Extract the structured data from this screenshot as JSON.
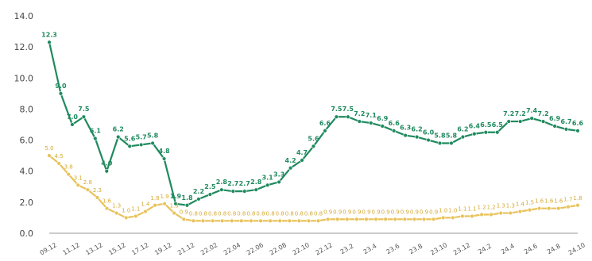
{
  "chart_data": {
    "type": "line",
    "ylim": [
      0,
      14
    ],
    "yticks": [
      "0.0",
      "2.0",
      "4.0",
      "6.0",
      "8.0",
      "10.0",
      "12.0",
      "14.0"
    ],
    "grid": false,
    "x_labels": [
      "09.12",
      "11.12",
      "13.12",
      "15.12",
      "17.12",
      "19.12",
      "21.12",
      "22.02",
      "22.04",
      "22.06",
      "22.08",
      "22.10",
      "22.12",
      "23.2",
      "23.4",
      "23.6",
      "23.8",
      "23.10",
      "23.12",
      "24.2",
      "24.4",
      "24.6",
      "24.8",
      "24.10"
    ],
    "series": [
      {
        "color": "#1f8a5e",
        "values": [
          12.3,
          9.0,
          7.0,
          7.5,
          6.1,
          4.0,
          6.2,
          5.6,
          5.7,
          5.8,
          4.8,
          1.9,
          1.8,
          2.2,
          2.5,
          2.8,
          2.7,
          2.7,
          2.8,
          3.1,
          3.3,
          4.2,
          4.7,
          5.6,
          6.6,
          7.5,
          7.5,
          7.2,
          7.1,
          6.9,
          6.6,
          6.3,
          6.2,
          6.0,
          5.8,
          5.8,
          6.2,
          6.4,
          6.5,
          6.5,
          7.2,
          7.2,
          7.4,
          7.2,
          6.9,
          6.7,
          6.6
        ],
        "labels": [
          "12.3",
          "9.0",
          "7.0",
          "7.5",
          "6.1",
          "4.0",
          "6.2",
          "5.6",
          "5.7",
          "5.8",
          "4.8",
          "1.9",
          "1.8",
          "2.2",
          "2.5",
          "2.8",
          "2.7",
          "2.7",
          "2.8",
          "3.1",
          "3.3",
          "4.2",
          "4.7",
          "5.6",
          "6.6",
          "7.5",
          "7.5",
          "7.2",
          "7.1",
          "6.9",
          "6.6",
          "6.3",
          "6.2",
          "6.0",
          "5.8",
          "5.8",
          "6.2",
          "6.4",
          "6.5",
          "6.5",
          "7.2",
          "7.2",
          "7.4",
          "7.2",
          "6.9",
          "6.7",
          "6.6"
        ]
      },
      {
        "color": "#e8c25a",
        "values": [
          5.0,
          4.5,
          3.8,
          3.1,
          2.8,
          2.3,
          1.6,
          1.3,
          1.0,
          1.1,
          1.4,
          1.8,
          1.9,
          1.3,
          0.9,
          0.8,
          0.8,
          0.8,
          0.8,
          0.8,
          0.8,
          0.8,
          0.8,
          0.8,
          0.8,
          0.8,
          0.8,
          0.8,
          0.8,
          0.9,
          0.9,
          0.9,
          0.9,
          0.9,
          0.9,
          0.9,
          0.9,
          0.9,
          0.9,
          0.9,
          0.9,
          1.0,
          1.0,
          1.1,
          1.1,
          1.2,
          1.2,
          1.3,
          1.3,
          1.4,
          1.5,
          1.6,
          1.6,
          1.6,
          1.7,
          1.8
        ],
        "labels": [
          "5.0",
          "4.5",
          "3.8",
          "3.1",
          "2.8",
          "2.3",
          "1.6",
          "1.3",
          "1.0",
          "1.1",
          "1.4",
          "1.8",
          "1.9",
          "1.3",
          "0.9",
          "0.8",
          "0.8",
          "0.8",
          "0.8",
          "0.8",
          "0.8",
          "0.8",
          "0.8",
          "0.8",
          "0.8",
          "0.8",
          "0.8",
          "0.8",
          "0.8",
          "0.9",
          "0.9",
          "0.9",
          "0.9",
          "0.9",
          "0.9",
          "0.9",
          "0.9",
          "0.9",
          "0.9",
          "0.9",
          "0.9",
          "1.0",
          "1.0",
          "1.1",
          "1.1",
          "1.2",
          "1.2",
          "1.3",
          "1.3",
          "1.4",
          "1.5",
          "1.6",
          "1.6",
          "1.6",
          "1.7",
          "1.8"
        ]
      }
    ]
  }
}
